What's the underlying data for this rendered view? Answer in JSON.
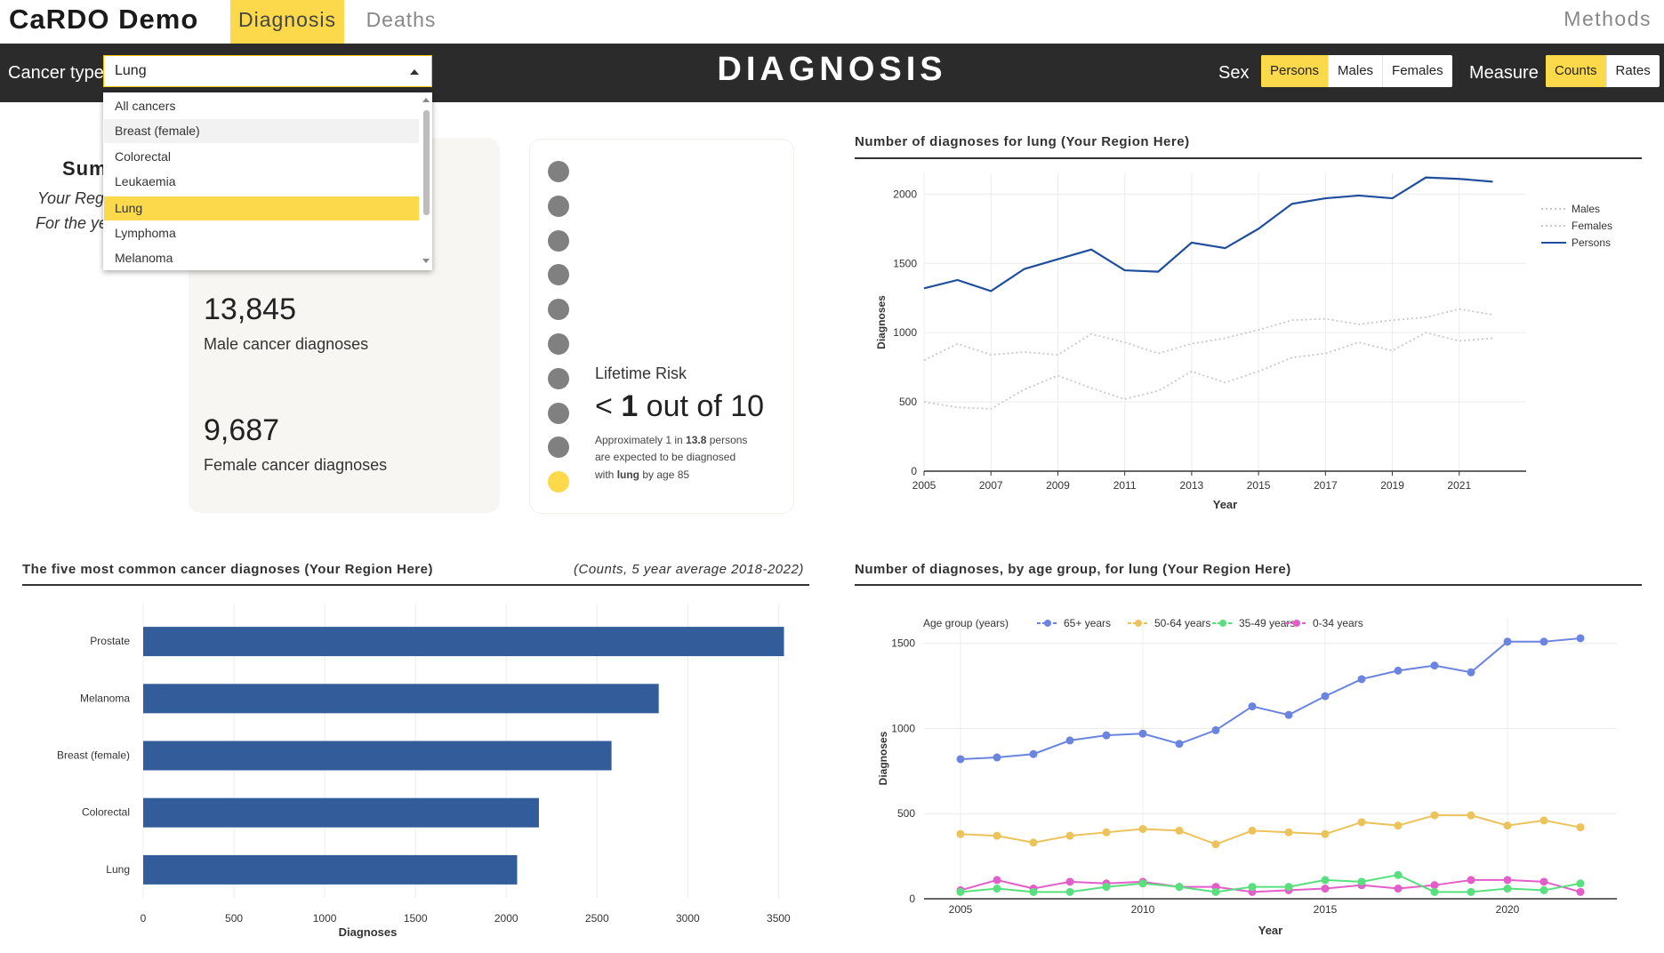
{
  "nav": {
    "brand": "CaRDO Demo",
    "tabs": [
      {
        "label": "Diagnosis",
        "active": true
      },
      {
        "label": "Deaths",
        "active": false
      }
    ],
    "methods": "Methods"
  },
  "toolbar": {
    "cancer_label": "Cancer type",
    "cancer_value": "Lung",
    "page_title": "DIAGNOSIS",
    "sex_label": "Sex",
    "sex_options": [
      {
        "label": "Persons",
        "selected": true
      },
      {
        "label": "Males",
        "selected": false
      },
      {
        "label": "Females",
        "selected": false
      }
    ],
    "measure_label": "Measure",
    "measure_options": [
      {
        "label": "Counts",
        "selected": true
      },
      {
        "label": "Rates",
        "selected": false
      }
    ]
  },
  "dropdown": {
    "items": [
      {
        "label": "All cancers",
        "state": ""
      },
      {
        "label": "Breast (female)",
        "state": "hover"
      },
      {
        "label": "Colorectal",
        "state": ""
      },
      {
        "label": "Leukaemia",
        "state": ""
      },
      {
        "label": "Lung",
        "state": "selected"
      },
      {
        "label": "Lymphoma",
        "state": ""
      },
      {
        "label": "Melanoma",
        "state": ""
      }
    ]
  },
  "summary": {
    "heading": "Sum",
    "sub1": "Your Regi",
    "sub2": "For the ye",
    "male_value": "13,845",
    "male_label": "Male cancer diagnoses",
    "female_value": "9,687",
    "female_label": "Female cancer diagnoses"
  },
  "lifetime_risk": {
    "label": "Lifetime Risk",
    "prefix": "< ",
    "number": "1",
    "suffix": " out of 10",
    "line1_a": "Approximately 1 in ",
    "line1_b": "13.8",
    "line1_c": " persons",
    "line2": "are expected to be diagnosed",
    "line3_a": "with ",
    "line3_b": "lung",
    "line3_c": " by age 85",
    "dots_total": 10,
    "dots_highlighted": 1,
    "colors": {
      "grey": "#808080",
      "yellow": "#fcd94a"
    }
  },
  "charts": {
    "trend": {
      "title": "Number of diagnoses for lung (Your Region Here)"
    },
    "top5": {
      "title": "The five most common cancer diagnoses (Your Region Here)",
      "note": "(Counts, 5 year average 2018-2022)"
    },
    "age": {
      "title": "Number of diagnoses, by age group, for lung (Your Region Here)"
    }
  },
  "chart_data": [
    {
      "type": "line",
      "title": "Number of diagnoses for lung (Your Region Here)",
      "xlabel": "Year",
      "ylabel": "Diagnoses",
      "x": [
        2005,
        2006,
        2007,
        2008,
        2009,
        2010,
        2011,
        2012,
        2013,
        2014,
        2015,
        2016,
        2017,
        2018,
        2019,
        2020,
        2021,
        2022
      ],
      "xticks": [
        2005,
        2007,
        2009,
        2011,
        2013,
        2015,
        2017,
        2019,
        2021
      ],
      "yticks": [
        0,
        500,
        1000,
        1500,
        2000
      ],
      "xlim": [
        2005,
        2023
      ],
      "ylim": [
        0,
        2150
      ],
      "legend": "top-right",
      "series": [
        {
          "name": "Males",
          "style": "dotted",
          "color": "#c8c8c8",
          "values": [
            800,
            920,
            840,
            860,
            840,
            990,
            930,
            850,
            920,
            960,
            1020,
            1090,
            1100,
            1060,
            1090,
            1110,
            1170,
            1130
          ]
        },
        {
          "name": "Females",
          "style": "dotted",
          "color": "#c8c8c8",
          "values": [
            500,
            460,
            450,
            590,
            690,
            600,
            520,
            580,
            720,
            640,
            720,
            820,
            850,
            930,
            870,
            1000,
            940,
            960
          ]
        },
        {
          "name": "Persons",
          "style": "solid",
          "color": "#1f4e9c",
          "values": [
            1320,
            1380,
            1300,
            1460,
            1530,
            1600,
            1450,
            1440,
            1650,
            1610,
            1750,
            1930,
            1970,
            1990,
            1970,
            2120,
            2110,
            2090
          ]
        }
      ]
    },
    {
      "type": "bar",
      "orientation": "horizontal",
      "title": "The five most common cancer diagnoses (Your Region Here)",
      "xlabel": "Diagnoses",
      "ylabel": "",
      "categories": [
        "Prostate",
        "Melanoma",
        "Breast (female)",
        "Colorectal",
        "Lung"
      ],
      "values": [
        3530,
        2840,
        2580,
        2180,
        2060
      ],
      "xticks": [
        0,
        500,
        1000,
        1500,
        2000,
        2500,
        3000,
        3500
      ],
      "xlim": [
        0,
        3650
      ],
      "color": "#325c9a"
    },
    {
      "type": "line",
      "title": "Number of diagnoses, by age group, for lung (Your Region Here)",
      "xlabel": "Year",
      "ylabel": "Diagnoses",
      "legend_title": "Age group (years)",
      "legend": "top",
      "x": [
        2005,
        2006,
        2007,
        2008,
        2009,
        2010,
        2011,
        2012,
        2013,
        2014,
        2015,
        2016,
        2017,
        2018,
        2019,
        2020,
        2021,
        2022
      ],
      "xticks": [
        2005,
        2010,
        2015,
        2020
      ],
      "yticks": [
        0,
        500,
        1000,
        1500
      ],
      "xlim": [
        2004,
        2023
      ],
      "ylim": [
        0,
        1650
      ],
      "series": [
        {
          "name": "65+ years",
          "color": "#6a84e0",
          "values": [
            820,
            830,
            850,
            930,
            960,
            970,
            910,
            990,
            1130,
            1080,
            1190,
            1290,
            1340,
            1370,
            1330,
            1510,
            1510,
            1530
          ]
        },
        {
          "name": "50-64 years",
          "color": "#ebc35a",
          "values": [
            380,
            370,
            330,
            370,
            390,
            410,
            400,
            320,
            400,
            390,
            380,
            450,
            430,
            490,
            490,
            430,
            460,
            420
          ]
        },
        {
          "name": "35-49 years",
          "color": "#58e07f",
          "values": [
            40,
            60,
            40,
            40,
            70,
            90,
            70,
            40,
            70,
            70,
            110,
            100,
            140,
            40,
            40,
            60,
            50,
            90
          ]
        },
        {
          "name": "0-34 years",
          "color": "#e45ec9",
          "values": [
            50,
            110,
            60,
            100,
            90,
            100,
            70,
            70,
            40,
            50,
            60,
            80,
            60,
            80,
            110,
            110,
            100,
            40
          ]
        }
      ]
    }
  ]
}
